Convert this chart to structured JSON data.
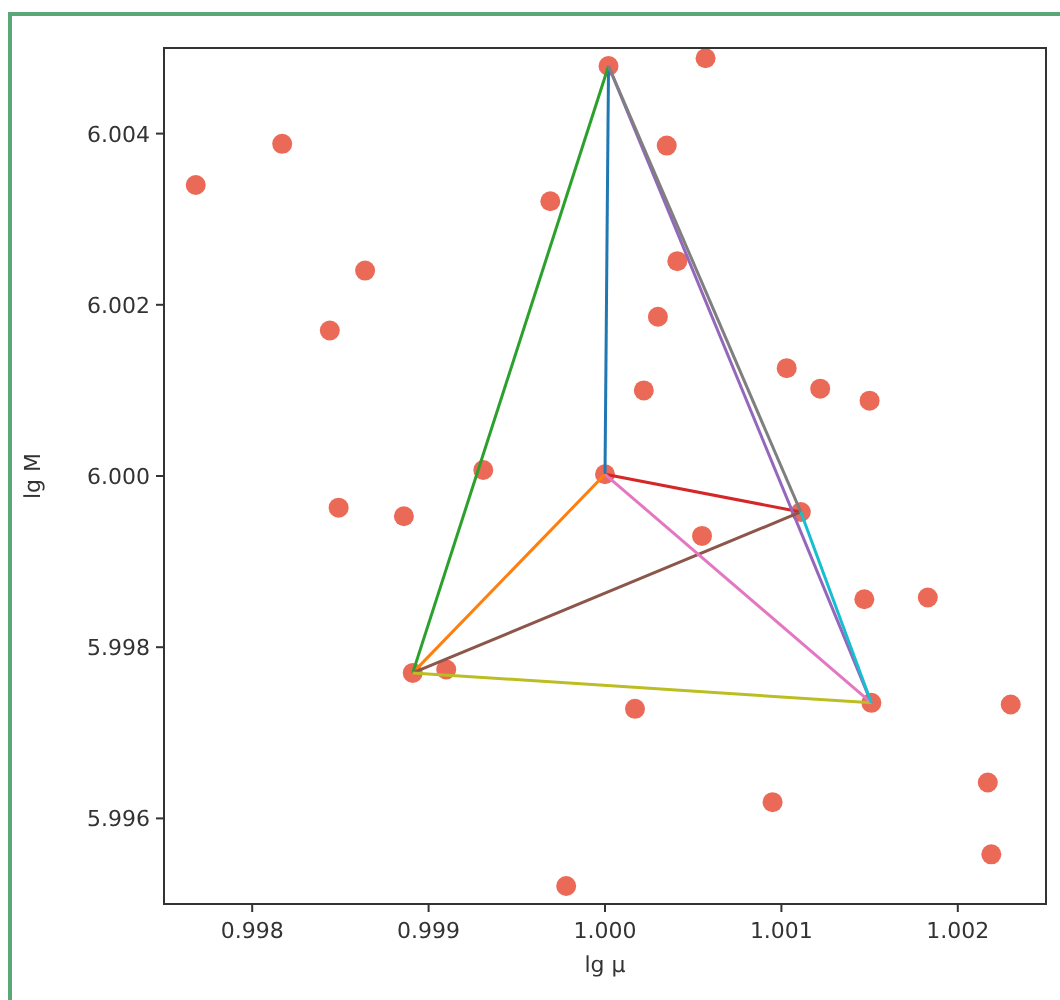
{
  "chart_data": {
    "type": "scatter",
    "xlabel": "lg μ",
    "ylabel": "lg M",
    "xlim": [
      0.9975,
      1.0025
    ],
    "ylim": [
      5.995,
      6.005
    ],
    "xticks": [
      0.998,
      0.999,
      {
        "value": 1,
        "label": "1.000"
      },
      1.001,
      1.002
    ],
    "yticks": [
      5.996,
      5.998,
      {
        "value": 6,
        "label": "6.000"
      },
      6.002,
      6.004
    ],
    "grid": false,
    "series": [
      {
        "marker": "circle",
        "color": "#e8503a",
        "x": [
          0.99768,
          0.99817,
          0.99844,
          0.99864,
          0.99849,
          0.99886,
          0.99931,
          0.9991,
          0.99891,
          1.00002,
          1.00057,
          0.99969,
          1.00035,
          1.00041,
          1.0003,
          1.00022,
          1.0,
          1.00103,
          1.00122,
          1.0015,
          1.00055,
          1.00111,
          1.00147,
          1.00183,
          1.00151,
          1.00017,
          1.00095,
          1.0023,
          1.00217,
          1.00219,
          0.99978
        ],
        "values": [
          6.0034,
          6.00388,
          6.0017,
          6.0024,
          5.99963,
          5.99953,
          6.00007,
          5.99774,
          5.9977,
          6.00479,
          6.00488,
          6.00321,
          6.00386,
          6.00251,
          6.00186,
          6.001,
          6.00002,
          6.00126,
          6.00102,
          6.00088,
          5.9993,
          5.99958,
          5.99856,
          5.99858,
          5.99735,
          5.99728,
          5.99619,
          5.99733,
          5.99642,
          5.99558,
          5.99521
        ]
      },
      {
        "type": "line",
        "color": "#1f77b4",
        "x": [
          1.0,
          1.00002
        ],
        "values": [
          6.00002,
          6.00479
        ]
      },
      {
        "type": "line",
        "color": "#ff7f0e",
        "x": [
          1.0,
          0.99891
        ],
        "values": [
          6.00002,
          5.9977
        ]
      },
      {
        "type": "line",
        "color": "#2ca02c",
        "x": [
          0.99891,
          1.00002
        ],
        "values": [
          5.9977,
          6.00479
        ]
      },
      {
        "type": "line",
        "color": "#d62728",
        "x": [
          1.0,
          1.00111
        ],
        "values": [
          6.00002,
          5.99958
        ]
      },
      {
        "type": "line",
        "color": "#9467bd",
        "x": [
          1.00002,
          1.00151
        ],
        "values": [
          6.00479,
          5.99735
        ]
      },
      {
        "type": "line",
        "color": "#8c564b",
        "x": [
          0.99891,
          1.00111
        ],
        "values": [
          5.9977,
          5.99958
        ]
      },
      {
        "type": "line",
        "color": "#e377c2",
        "x": [
          1.0,
          1.00151
        ],
        "values": [
          6.00002,
          5.99735
        ]
      },
      {
        "type": "line",
        "color": "#7f7f7f",
        "x": [
          1.00002,
          1.00111
        ],
        "values": [
          6.00479,
          5.99958
        ]
      },
      {
        "type": "line",
        "color": "#bcbd22",
        "x": [
          0.99891,
          1.00151
        ],
        "values": [
          5.9977,
          5.99735
        ]
      },
      {
        "type": "line",
        "color": "#17becf",
        "x": [
          1.00111,
          1.00151
        ],
        "values": [
          5.99958,
          5.99735
        ]
      }
    ]
  }
}
